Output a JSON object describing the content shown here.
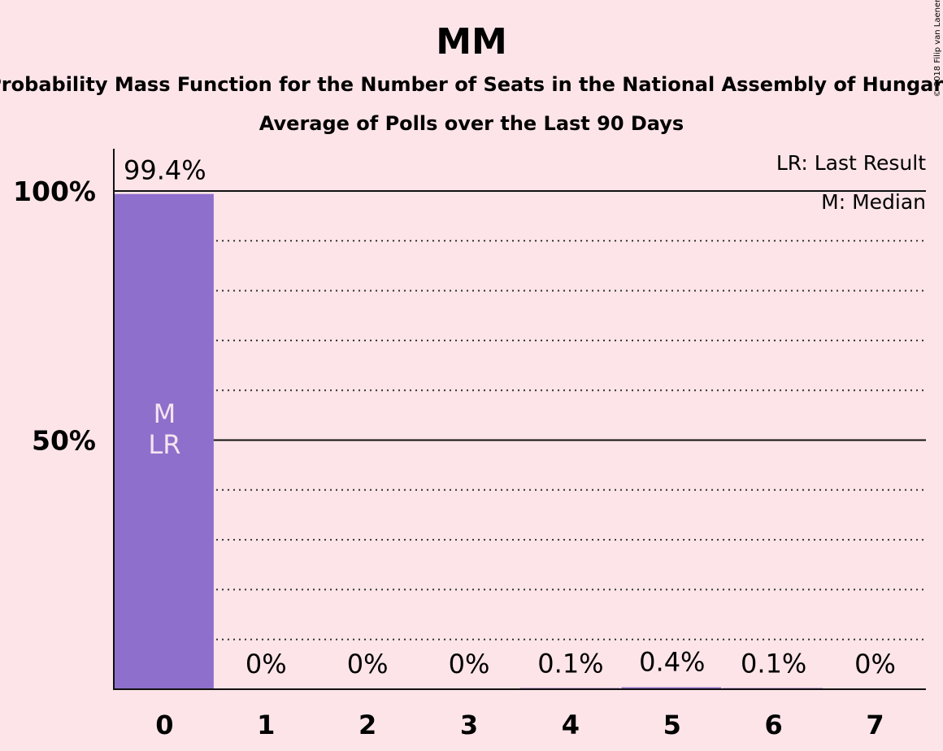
{
  "chart_data": {
    "type": "bar",
    "title": "MM",
    "subtitle": "Probability Mass Function for the Number of Seats in the National Assembly of Hungary",
    "subtitle2": "Average of Polls over the Last 90 Days",
    "categories": [
      "0",
      "1",
      "2",
      "3",
      "4",
      "5",
      "6",
      "7"
    ],
    "values": [
      99.4,
      0,
      0,
      0,
      0.1,
      0.4,
      0.1,
      0
    ],
    "value_labels": [
      "99.4%",
      "0%",
      "0%",
      "0%",
      "0.1%",
      "0.4%",
      "0.1%",
      "0%"
    ],
    "ylim": [
      0,
      100
    ],
    "y_ticks": [
      {
        "value": 100,
        "label": "100%"
      },
      {
        "value": 50,
        "label": "50%"
      }
    ],
    "gridlines_dotted": [
      10,
      20,
      30,
      40,
      60,
      70,
      80,
      90
    ],
    "gridlines_solid": [
      50,
      100
    ],
    "bar_color": "#8e6fcb",
    "background": "#fce4e8",
    "median_index": 0,
    "last_result_index": 0,
    "inbar_median_label": "M",
    "inbar_last_result_label": "LR",
    "legend": [
      "LR: Last Result",
      "M: Median"
    ],
    "legend_position": "top-right",
    "copyright": "© 2018 Filip van Laenen"
  }
}
